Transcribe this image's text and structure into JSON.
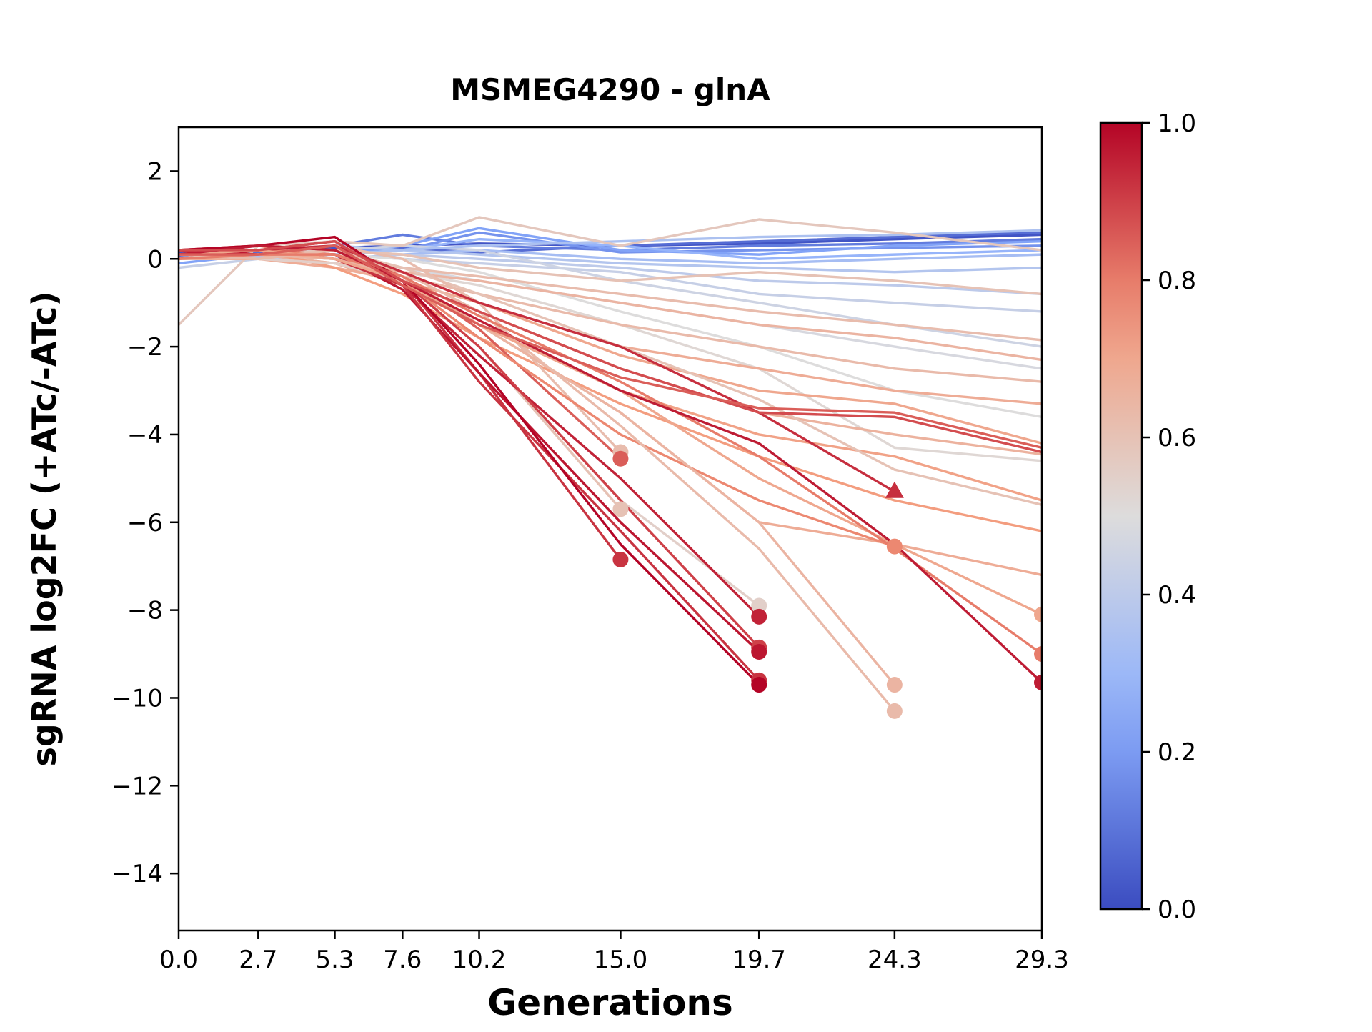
{
  "title": "MSMEG4290 - glnA",
  "xlabel": "Generations",
  "ylabel": "sgRNA log2FC (+ATc/-ATc)",
  "colormap": {
    "name": "coolwarm",
    "anchors": [
      [
        "0.0",
        "#3b4cc0"
      ],
      [
        "0.25",
        "#8caffe"
      ],
      [
        "0.5",
        "#dddcdc"
      ],
      [
        "0.75",
        "#f49a7b"
      ],
      [
        "1.0",
        "#b40426"
      ]
    ]
  },
  "colorbar": {
    "tick_values": [
      1.0,
      0.8,
      0.6,
      0.4,
      0.2,
      0.0
    ],
    "tick_labels": [
      "1.0",
      "0.8",
      "0.6",
      "0.4",
      "0.2",
      "0.0"
    ]
  },
  "chart_data": {
    "type": "line",
    "title": "MSMEG4290 - glnA",
    "xlabel": "Generations",
    "ylabel": "sgRNA log2FC (+ATc/-ATc)",
    "x": [
      0.0,
      2.7,
      5.3,
      7.6,
      10.2,
      15.0,
      19.7,
      24.3,
      29.3
    ],
    "x_tick_labels": [
      "0.0",
      "2.7",
      "5.3",
      "7.6",
      "10.2",
      "15.0",
      "19.7",
      "24.3",
      "29.3"
    ],
    "y_ticks": [
      2,
      0,
      -2,
      -4,
      -6,
      -8,
      -10,
      -12,
      -14
    ],
    "y_tick_labels": [
      "2",
      "0",
      "−2",
      "−4",
      "−6",
      "−8",
      "−10",
      "−12",
      "−14"
    ],
    "xlim": [
      0.0,
      29.3
    ],
    "ylim": [
      -15.3,
      3.0
    ],
    "grid": false,
    "legend": "none (color encodes sgRNA strength 0-1 via coolwarm colorbar)",
    "series": [
      {
        "c": 0.02,
        "y": [
          0.15,
          0.2,
          0.25,
          0.3,
          0.35,
          0.3,
          0.35,
          0.45,
          0.55
        ]
      },
      {
        "c": 0.08,
        "y": [
          0.05,
          0.15,
          0.2,
          0.25,
          0.15,
          0.3,
          0.4,
          0.5,
          0.6
        ]
      },
      {
        "c": 0.12,
        "y": [
          0.2,
          0.1,
          0.3,
          0.55,
          0.3,
          0.2,
          0.3,
          0.35,
          0.45
        ]
      },
      {
        "c": 0.18,
        "y": [
          0.1,
          0.0,
          0.2,
          0.2,
          0.6,
          0.15,
          0.2,
          0.25,
          0.3
        ]
      },
      {
        "c": 0.22,
        "y": [
          -0.1,
          0.1,
          0.1,
          0.3,
          0.7,
          0.2,
          0.1,
          0.3,
          0.4
        ]
      },
      {
        "c": 0.28,
        "y": [
          0.0,
          0.2,
          0.1,
          0.2,
          0.45,
          0.3,
          0.0,
          0.1,
          0.2
        ]
      },
      {
        "c": 0.33,
        "y": [
          0.1,
          0.3,
          0.2,
          0.1,
          0.2,
          0.0,
          -0.1,
          0.0,
          0.1
        ]
      },
      {
        "c": 0.37,
        "y": [
          0.2,
          0.2,
          0.3,
          0.2,
          0.1,
          -0.1,
          -0.2,
          -0.3,
          -0.2
        ]
      },
      {
        "c": 0.4,
        "y": [
          0.0,
          0.1,
          0.0,
          0.1,
          0.0,
          -0.2,
          -0.5,
          -0.6,
          -0.8
        ]
      },
      {
        "c": 0.43,
        "y": [
          -0.2,
          0.0,
          0.1,
          0.0,
          -0.1,
          -0.3,
          -0.8,
          -1.0,
          -1.2
        ]
      },
      {
        "c": 0.45,
        "y": [
          0.1,
          0.2,
          0.2,
          0.3,
          0.2,
          -0.5,
          -1.0,
          -1.5,
          -2.0
        ]
      },
      {
        "c": 0.35,
        "y": [
          0.0,
          0.05,
          0.1,
          0.2,
          0.3,
          0.4,
          0.5,
          0.55,
          0.65
        ]
      },
      {
        "c": 0.48,
        "y": [
          0.1,
          0.1,
          0.0,
          -0.2,
          -0.5,
          -1.0,
          -1.5,
          -2.0,
          -2.5
        ]
      },
      {
        "c": 0.5,
        "y": [
          0.0,
          0.2,
          0.1,
          0.0,
          -0.3,
          -1.2,
          -2.0,
          -3.0,
          -3.6
        ]
      },
      {
        "c": 0.52,
        "y": [
          0.1,
          0.0,
          -0.1,
          -0.3,
          -0.6,
          -1.5,
          -2.5,
          -4.3,
          -4.6
        ]
      },
      {
        "c": 0.58,
        "y": [
          -1.5,
          0.3,
          0.4,
          0.3,
          0.95,
          0.3,
          0.9,
          0.6,
          0.2
        ]
      },
      {
        "c": 0.6,
        "y": [
          0.2,
          0.3,
          0.2,
          0.1,
          -0.2,
          -0.5,
          -0.3,
          -0.5,
          -0.8
        ]
      },
      {
        "c": 0.62,
        "y": [
          0.1,
          0.2,
          0.0,
          -0.2,
          -0.4,
          -0.8,
          -1.2,
          -1.5,
          -1.85
        ]
      },
      {
        "c": 0.65,
        "y": [
          0.0,
          0.1,
          -0.1,
          -0.3,
          -0.5,
          -1.0,
          -1.5,
          -1.8,
          -2.3
        ]
      },
      {
        "c": 0.63,
        "y": [
          0.2,
          0.1,
          0.0,
          -0.4,
          -0.8,
          -1.5,
          -2.0,
          -2.5,
          -2.8
        ]
      },
      {
        "c": 0.68,
        "y": [
          0.1,
          0.0,
          -0.2,
          -0.5,
          -1.0,
          -2.0,
          -2.5,
          -3.0,
          -3.3
        ]
      },
      {
        "c": 0.7,
        "y": [
          0.0,
          0.2,
          0.1,
          -0.3,
          -1.0,
          -2.2,
          -3.0,
          -3.3,
          -4.2
        ]
      },
      {
        "c": 0.66,
        "y": [
          0.1,
          0.1,
          -0.1,
          -0.5,
          -1.2,
          -2.5,
          -3.5,
          -4.0,
          -4.45
        ]
      },
      {
        "c": 0.72,
        "y": [
          0.2,
          0.3,
          0.0,
          -0.5,
          -1.5,
          -3.0,
          -4.0,
          -4.5,
          -5.5
        ]
      },
      {
        "c": 0.6,
        "y": [
          0.0,
          0.1,
          0.2,
          -0.2,
          -0.8,
          -2.0,
          -3.2,
          -4.8,
          -5.6
        ]
      },
      {
        "c": 0.74,
        "y": [
          0.1,
          0.2,
          -0.2,
          -0.8,
          -1.8,
          -3.3,
          -4.5,
          -5.5,
          -6.2
        ]
      },
      {
        "c": 0.68,
        "y": [
          0.0,
          0.0,
          -0.1,
          -0.6,
          -1.5,
          -3.5,
          -6.0,
          -6.5,
          -7.2
        ]
      },
      {
        "c": 0.62,
        "m": "o",
        "y": [
          0.1,
          0.2,
          0.3,
          0.0,
          -1.0,
          -4.4
        ]
      },
      {
        "c": 0.85,
        "m": "o",
        "y": [
          0.2,
          0.3,
          0.2,
          -0.4,
          -1.6,
          -4.55
        ]
      },
      {
        "c": 0.6,
        "m": "o",
        "y": [
          0.0,
          0.1,
          0.0,
          -0.5,
          -2.0,
          -5.7
        ]
      },
      {
        "c": 0.92,
        "m": "o",
        "y": [
          0.1,
          0.2,
          0.4,
          -0.5,
          -2.6,
          -6.85
        ]
      },
      {
        "c": 0.55,
        "m": "o",
        "y": [
          0.1,
          0.0,
          -0.1,
          -0.5,
          -2.0,
          -5.5,
          -7.9
        ]
      },
      {
        "c": 0.95,
        "m": "o",
        "y": [
          0.2,
          0.1,
          0.3,
          -0.6,
          -2.2,
          -5.0,
          -8.15
        ]
      },
      {
        "c": 0.9,
        "m": "o",
        "y": [
          0.1,
          0.3,
          0.2,
          -0.5,
          -2.0,
          -5.5,
          -8.85
        ]
      },
      {
        "c": 0.97,
        "m": "o",
        "y": [
          0.0,
          0.2,
          0.1,
          -0.7,
          -2.6,
          -6.0,
          -8.95
        ]
      },
      {
        "c": 0.92,
        "m": "o",
        "y": [
          0.1,
          0.2,
          0.0,
          -0.6,
          -2.8,
          -6.2,
          -9.6
        ]
      },
      {
        "c": 1.0,
        "m": "o",
        "y": [
          0.2,
          0.3,
          0.5,
          -0.5,
          -2.4,
          -6.5,
          -9.7
        ]
      },
      {
        "c": 0.78,
        "m": "o",
        "y": [
          0.1,
          0.2,
          0.1,
          -0.5,
          -1.8,
          -4.0,
          -5.5,
          -6.55
        ]
      },
      {
        "c": 0.65,
        "m": "o",
        "y": [
          0.0,
          0.1,
          0.0,
          -0.4,
          -1.5,
          -3.5,
          -6.0,
          -9.7
        ]
      },
      {
        "c": 0.63,
        "m": "o",
        "y": [
          0.1,
          0.0,
          0.2,
          -0.3,
          -1.2,
          -3.8,
          -6.6,
          -10.3
        ]
      },
      {
        "c": 0.93,
        "m": "t",
        "y": [
          0.2,
          0.2,
          0.3,
          -0.3,
          -1.0,
          -2.0,
          -3.5,
          -5.3
        ]
      },
      {
        "c": 0.7,
        "m": "o",
        "y": [
          0.1,
          0.2,
          0.0,
          -0.5,
          -1.5,
          -3.0,
          -5.0,
          -6.5,
          -8.1
        ]
      },
      {
        "c": 0.8,
        "m": "o",
        "y": [
          0.0,
          0.1,
          0.1,
          -0.4,
          -1.3,
          -2.8,
          -4.5,
          -6.6,
          -9.0
        ]
      },
      {
        "c": 0.96,
        "m": "o",
        "y": [
          0.1,
          0.3,
          0.2,
          -0.5,
          -1.4,
          -3.0,
          -4.2,
          -6.5,
          -9.65
        ]
      },
      {
        "c": 0.88,
        "y": [
          0.2,
          0.2,
          0.4,
          -0.5,
          -1.2,
          -2.5,
          -3.5,
          -3.6,
          -4.4
        ]
      },
      {
        "c": 0.85,
        "y": [
          0.1,
          0.1,
          0.3,
          -0.6,
          -1.5,
          -2.7,
          -3.4,
          -3.5,
          -4.3
        ]
      }
    ]
  }
}
